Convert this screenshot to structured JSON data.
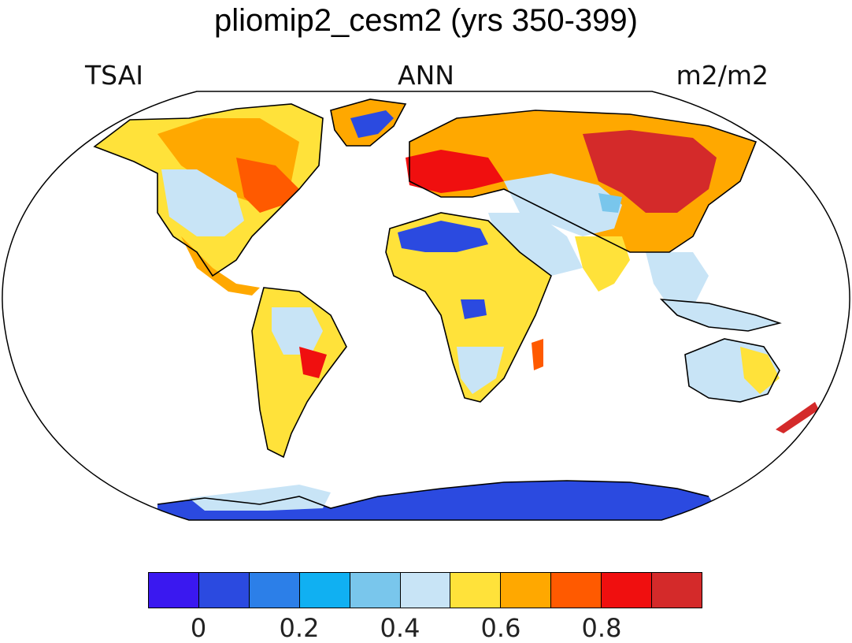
{
  "figure": {
    "title": "pliomip2_cesm2 (yrs 350-399)",
    "left_label": "TSAI",
    "center_label": "ANN",
    "right_label": "m2/m2"
  },
  "colorbar": {
    "colors": [
      "#3a18f0",
      "#2b4ae0",
      "#2c7fe8",
      "#10b0f2",
      "#79c6ec",
      "#c8e4f6",
      "#ffe23a",
      "#ffa800",
      "#ff5a00",
      "#f00f0f",
      "#d42a2a"
    ],
    "tick_labels": [
      "0",
      "0.2",
      "0.4",
      "0.6",
      "0.8"
    ]
  },
  "map": {
    "projection": "Robinson",
    "ocean_color": "#ffffff",
    "coastline_color": "#000000",
    "field": "TSAI"
  }
}
